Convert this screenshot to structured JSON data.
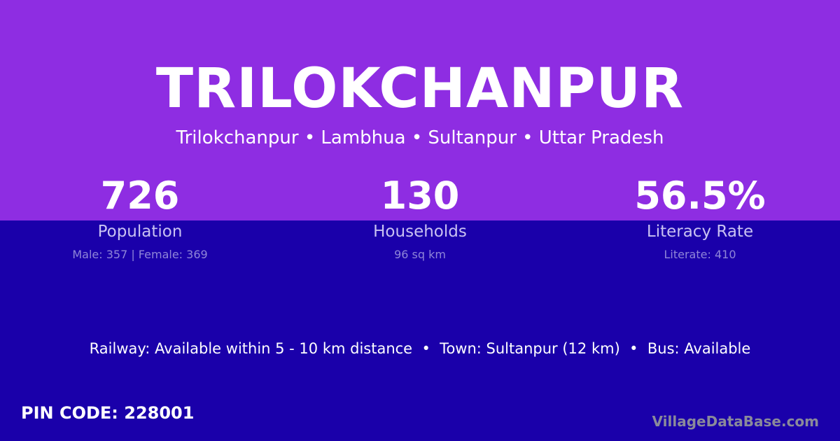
{
  "colors": {
    "top_background": "#8e2de2",
    "bottom_background": "#1a00aa"
  },
  "title": "TRILOKCHANPUR",
  "subtitle": "Trilokchanpur • Lambhua • Sultanpur • Uttar Pradesh",
  "stats": [
    {
      "value": "726",
      "label": "Population",
      "detail": "Male: 357 | Female: 369"
    },
    {
      "value": "130",
      "label": "Households",
      "detail": "96 sq km"
    },
    {
      "value": "56.5%",
      "label": "Literacy Rate",
      "detail": "Literate: 410"
    }
  ],
  "info_line": "Railway: Available within 5 - 10 km distance  •  Town: Sultanpur (12 km)  •  Bus: Available",
  "pin_code": "PIN CODE: 228001",
  "brand": "VillageDataBase.com"
}
